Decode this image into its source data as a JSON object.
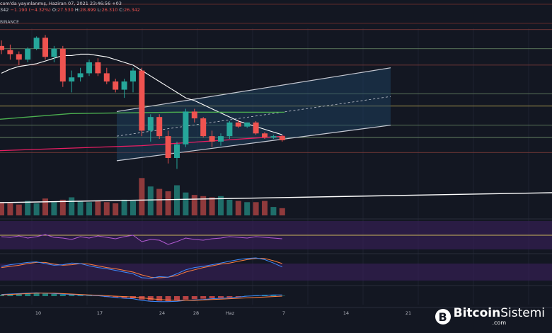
{
  "header": {
    "line1": "com'da yayınlanmış, Haziran 07, 2021 23:46:56 +03",
    "price_prefix": "342 ",
    "change": "−1.190 (−4.32%)",
    "o_label": " O:",
    "o": "27.530",
    "h_label": " H:",
    "h": "28.899",
    "l_label": " L:",
    "l": "26.310",
    "c_label": " C:",
    "c": "26.342",
    "exchange": "BINANCE"
  },
  "colors": {
    "background": "#131722",
    "up": "#26a69a",
    "down": "#ef5350",
    "volume_up": "#1f6e6a",
    "volume_down": "#8f3a3c",
    "ma_white": "#ffffff",
    "ma_green": "#4caf50",
    "ma_pink": "#e91e63",
    "channel_fill": "#1e4b6e",
    "hline_yellow": "#c9b65a",
    "hline_green": "#6f8f6a",
    "hline_red": "#8a3f3c",
    "osc_band": "#3b1f5c"
  },
  "brand": {
    "badge": "B",
    "name_bold": "Bitcoin",
    "name_thin": "Sistemi",
    "tld": ".com"
  },
  "chart_data": {
    "type": "candlestick",
    "x_tick_labels": [
      "10",
      "17",
      "24",
      "28",
      "Haz",
      "7",
      "14",
      "21"
    ],
    "candles": [
      {
        "o": 96,
        "h": 100,
        "l": 90,
        "c": 93
      },
      {
        "o": 93,
        "h": 97,
        "l": 86,
        "c": 90
      },
      {
        "o": 90,
        "h": 92,
        "l": 82,
        "c": 86
      },
      {
        "o": 86,
        "h": 95,
        "l": 84,
        "c": 94
      },
      {
        "o": 94,
        "h": 103,
        "l": 93,
        "c": 102
      },
      {
        "o": 102,
        "h": 104,
        "l": 86,
        "c": 88
      },
      {
        "o": 88,
        "h": 96,
        "l": 84,
        "c": 94
      },
      {
        "o": 94,
        "h": 96,
        "l": 66,
        "c": 70
      },
      {
        "o": 70,
        "h": 78,
        "l": 62,
        "c": 73
      },
      {
        "o": 73,
        "h": 80,
        "l": 70,
        "c": 76
      },
      {
        "o": 76,
        "h": 86,
        "l": 74,
        "c": 84
      },
      {
        "o": 84,
        "h": 87,
        "l": 74,
        "c": 76
      },
      {
        "o": 76,
        "h": 80,
        "l": 68,
        "c": 70
      },
      {
        "o": 70,
        "h": 72,
        "l": 62,
        "c": 64
      },
      {
        "o": 64,
        "h": 72,
        "l": 58,
        "c": 70
      },
      {
        "o": 70,
        "h": 80,
        "l": 62,
        "c": 78
      },
      {
        "o": 78,
        "h": 80,
        "l": 30,
        "c": 34
      },
      {
        "o": 34,
        "h": 46,
        "l": 26,
        "c": 44
      },
      {
        "o": 44,
        "h": 46,
        "l": 28,
        "c": 30
      },
      {
        "o": 30,
        "h": 34,
        "l": 10,
        "c": 14
      },
      {
        "o": 14,
        "h": 26,
        "l": 6,
        "c": 24
      },
      {
        "o": 24,
        "h": 50,
        "l": 22,
        "c": 48
      },
      {
        "o": 48,
        "h": 50,
        "l": 40,
        "c": 43
      },
      {
        "o": 43,
        "h": 44,
        "l": 29,
        "c": 30
      },
      {
        "o": 30,
        "h": 34,
        "l": 22,
        "c": 26
      },
      {
        "o": 26,
        "h": 32,
        "l": 23,
        "c": 30
      },
      {
        "o": 30,
        "h": 41,
        "l": 28,
        "c": 40
      },
      {
        "o": 40,
        "h": 42,
        "l": 36,
        "c": 37
      },
      {
        "o": 37,
        "h": 40,
        "l": 36,
        "c": 40
      },
      {
        "o": 40,
        "h": 41,
        "l": 31,
        "c": 32
      },
      {
        "o": 32,
        "h": 33,
        "l": 28,
        "c": 29
      },
      {
        "o": 29,
        "h": 31,
        "l": 28,
        "c": 30
      },
      {
        "o": 30,
        "h": 31,
        "l": 26,
        "c": 27
      }
    ],
    "volumes": [
      22,
      20,
      18,
      24,
      20,
      28,
      22,
      26,
      30,
      24,
      22,
      24,
      22,
      20,
      26,
      24,
      62,
      48,
      44,
      40,
      50,
      38,
      34,
      32,
      30,
      32,
      26,
      24,
      22,
      22,
      24,
      14,
      12
    ],
    "ma_white": [
      76,
      79,
      81,
      82,
      83,
      85,
      87,
      89,
      89,
      90,
      90,
      89,
      88,
      86,
      84,
      82,
      78,
      74,
      70,
      66,
      62,
      58,
      56,
      53,
      50,
      47,
      44,
      41,
      39,
      37,
      35,
      33,
      31
    ],
    "ma_green_start": 46.5,
    "ma_green_end": 47,
    "ma_pink_start": 22,
    "ma_pink_end": 30,
    "horizontal_levels": [
      {
        "value": 108,
        "color": "red"
      },
      {
        "value": 94,
        "color": "green"
      },
      {
        "value": 82,
        "color": "red"
      },
      {
        "value": 61,
        "color": "green"
      },
      {
        "value": 52,
        "color": "yellow"
      },
      {
        "value": 38,
        "color": "green"
      },
      {
        "value": 29,
        "color": "green"
      },
      {
        "value": 18,
        "color": "red"
      }
    ],
    "channel": {
      "lower_start": 12,
      "lower_end": 38,
      "upper_start": 48,
      "upper_end": 80
    },
    "osc_values": [
      44,
      42,
      46,
      40,
      44,
      50,
      42,
      40,
      36,
      44,
      40,
      46,
      42,
      38,
      44,
      48,
      30,
      36,
      34,
      22,
      30,
      40,
      36,
      34,
      38,
      40,
      44,
      42,
      40,
      44,
      42,
      40,
      38
    ],
    "stoch_k": [
      60,
      66,
      70,
      74,
      76,
      70,
      64,
      66,
      72,
      70,
      62,
      56,
      52,
      46,
      40,
      34,
      20,
      18,
      24,
      22,
      34,
      48,
      56,
      60,
      66,
      72,
      78,
      84,
      88,
      90,
      84,
      72,
      58
    ],
    "stoch_d": [
      56,
      60,
      64,
      70,
      74,
      74,
      68,
      64,
      66,
      70,
      68,
      62,
      56,
      52,
      46,
      40,
      30,
      22,
      20,
      22,
      28,
      40,
      48,
      56,
      62,
      68,
      72,
      78,
      84,
      88,
      88,
      80,
      70
    ],
    "macd_hist": [
      1.5,
      2,
      2.5,
      3,
      3.5,
      3,
      2.5,
      2,
      1.5,
      1,
      0.5,
      0,
      -1,
      -1.5,
      -2,
      -2.5,
      -4,
      -5,
      -5.5,
      -6,
      -5,
      -4,
      -3.5,
      -3,
      -2.5,
      -2,
      -1.5,
      -1,
      0.5,
      1,
      1.5,
      1,
      0.5
    ],
    "macd_line": [
      2,
      2.5,
      3,
      3.5,
      4,
      3.5,
      3,
      2.5,
      2,
      1.5,
      1,
      0.5,
      -0.5,
      -1.5,
      -2.5,
      -3,
      -5,
      -6,
      -6.5,
      -6.5,
      -6,
      -5,
      -4.5,
      -4,
      -3,
      -2.5,
      -2,
      -1,
      0,
      0.5,
      1,
      1.5,
      1.5
    ],
    "macd_signal": [
      1.5,
      2,
      2.5,
      3,
      3.5,
      3.5,
      3.5,
      3,
      2.5,
      2,
      1.5,
      1,
      0.5,
      0,
      -0.5,
      -1,
      -2,
      -3,
      -4,
      -4.5,
      -5,
      -5,
      -5,
      -4.5,
      -4,
      -3.5,
      -3,
      -2.5,
      -2,
      -1.5,
      -1,
      -0.5,
      0
    ]
  }
}
